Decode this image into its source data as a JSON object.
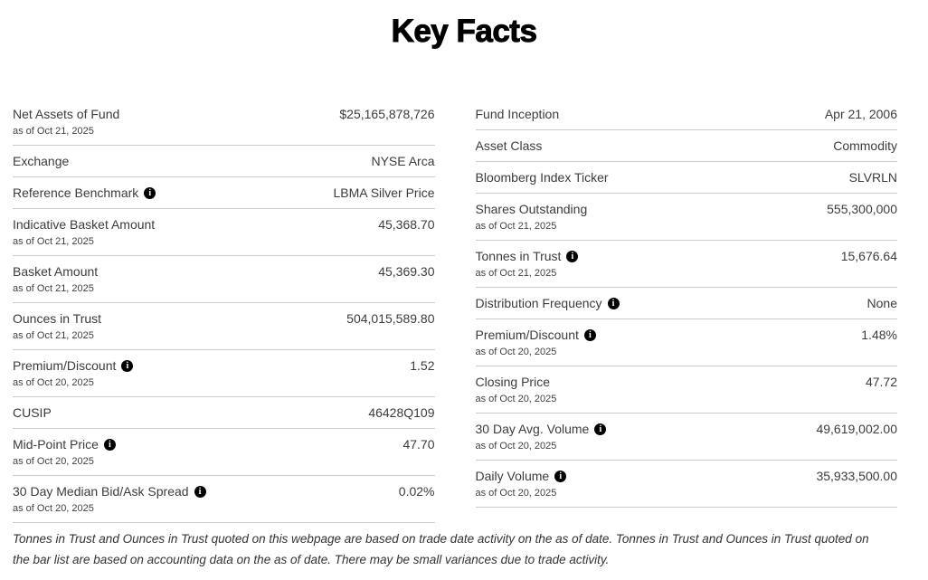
{
  "page": {
    "title": "Key Facts",
    "footnote": "Tonnes in Trust and Ounces in Trust quoted on this webpage are based on trade date activity on the as of date. Tonnes in Trust and Ounces in Trust quoted on the bar list are based on accounting data on the as of date. There may be small variances due to trade activity."
  },
  "colors": {
    "text": "#3c3c3c",
    "title": "#000000",
    "divider": "#cccccc",
    "info_icon_bg": "#000000",
    "info_icon_fg": "#ffffff"
  },
  "icons": {
    "info": {
      "name": "info-icon",
      "glyph": "i"
    }
  },
  "columns": {
    "left": [
      {
        "label": "Net Assets of Fund",
        "as_of": "as of Oct 21, 2025",
        "value": "$25,165,878,726",
        "info": false
      },
      {
        "label": "Exchange",
        "value": "NYSE Arca",
        "info": false
      },
      {
        "label": "Reference Benchmark",
        "value": "LBMA Silver Price",
        "info": true
      },
      {
        "label": "Indicative Basket Amount",
        "as_of": "as of Oct 21, 2025",
        "value": "45,368.70",
        "info": false
      },
      {
        "label": "Basket Amount",
        "as_of": "as of Oct 21, 2025",
        "value": "45,369.30",
        "info": false
      },
      {
        "label": "Ounces in Trust",
        "as_of": "as of Oct 21, 2025",
        "value": "504,015,589.80",
        "info": false
      },
      {
        "label": "Premium/Discount",
        "as_of": "as of Oct 20, 2025",
        "value": "1.52",
        "info": true
      },
      {
        "label": "CUSIP",
        "value": "46428Q109",
        "info": false
      },
      {
        "label": "Mid-Point Price",
        "as_of": "as of Oct 20, 2025",
        "value": "47.70",
        "info": true
      },
      {
        "label": "30 Day Median Bid/Ask Spread",
        "as_of": "as of Oct 20, 2025",
        "value": "0.02%",
        "info": true
      }
    ],
    "right": [
      {
        "label": "Fund Inception",
        "value": "Apr 21, 2006",
        "info": false
      },
      {
        "label": "Asset Class",
        "value": "Commodity",
        "info": false
      },
      {
        "label": "Bloomberg Index Ticker",
        "value": "SLVRLN",
        "info": false
      },
      {
        "label": "Shares Outstanding",
        "as_of": "as of Oct 21, 2025",
        "value": "555,300,000",
        "info": false
      },
      {
        "label": "Tonnes in Trust",
        "as_of": "as of Oct 21, 2025",
        "value": "15,676.64",
        "info": true
      },
      {
        "label": "Distribution Frequency",
        "value": "None",
        "info": true
      },
      {
        "label": "Premium/Discount",
        "as_of": "as of Oct 20, 2025",
        "value": "1.48%",
        "info": true
      },
      {
        "label": "Closing Price",
        "as_of": "as of Oct 20, 2025",
        "value": "47.72",
        "info": false
      },
      {
        "label": "30 Day Avg. Volume",
        "as_of": "as of Oct 20, 2025",
        "value": "49,619,002.00",
        "info": true
      },
      {
        "label": "Daily Volume",
        "as_of": "as of Oct 20, 2025",
        "value": "35,933,500.00",
        "info": true
      }
    ]
  }
}
